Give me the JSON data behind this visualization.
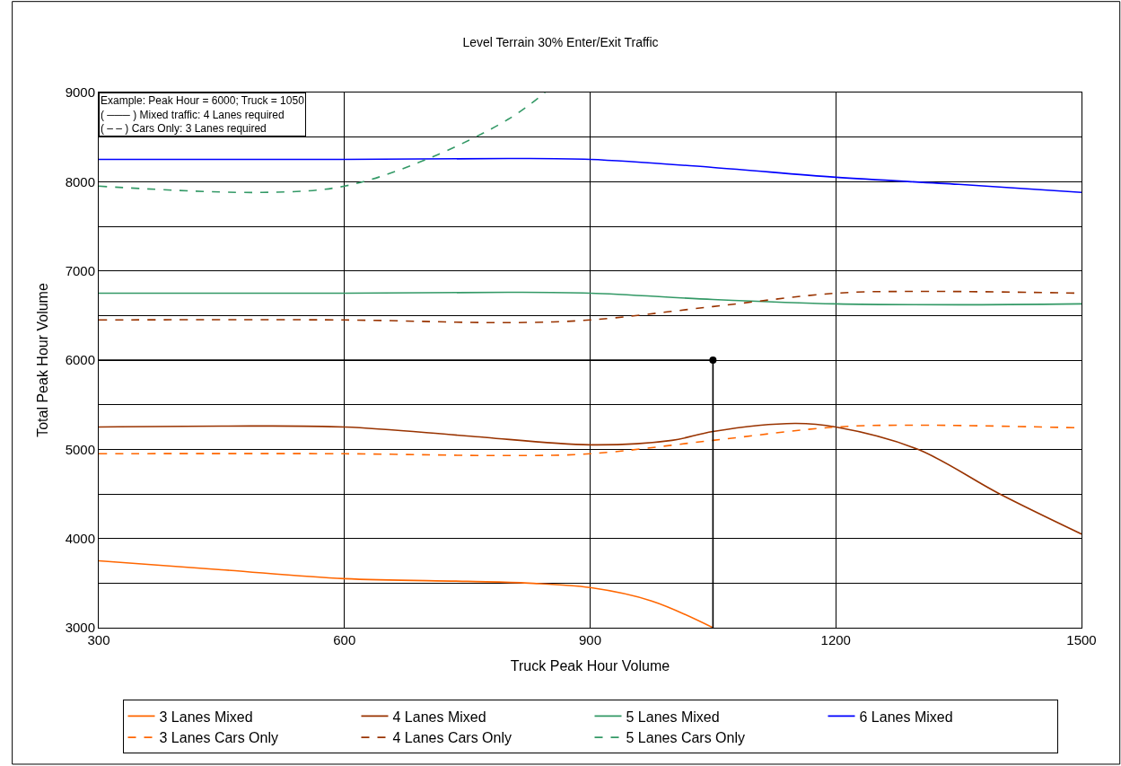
{
  "chart_data": {
    "type": "line",
    "title": "Level Terrain 30% Enter/Exit Traffic",
    "xlabel": "Truck Peak Hour Volume",
    "ylabel": "Total Peak Hour Volume",
    "xlim": [
      300,
      1500
    ],
    "xticks": [
      300,
      600,
      900,
      1200,
      1500
    ],
    "ylim": [
      3000,
      9000
    ],
    "yticks": [
      3000,
      {
        "value": 3500,
        "label": null
      },
      4000,
      {
        "value": 4500,
        "label": null
      },
      5000,
      {
        "value": 5500,
        "label": null
      },
      6000,
      {
        "value": 6500,
        "label": null
      },
      7000,
      {
        "value": 7500,
        "label": null
      },
      8000,
      {
        "value": 8500,
        "label": null
      },
      9000
    ],
    "grid": true,
    "legend": "bottom",
    "marker": "none",
    "annotations": [
      "Example: Peak Hour = 6000; Truck = 1050",
      "( ─── ) Mixed traffic: 4 Lanes required",
      "( ‒ ‒ ) Cars Only: 3 Lanes required"
    ],
    "series": [
      {
        "name": "3 Lanes Mixed",
        "color": "#ff6600",
        "line_style": "solid",
        "x": [
          300,
          450,
          600,
          750,
          825,
          900,
          975,
          1050
        ],
        "values": [
          3750,
          3650,
          3550,
          3520,
          3500,
          3450,
          3300,
          3000
        ]
      },
      {
        "name": "4 Lanes Mixed",
        "color": "#993300",
        "line_style": "solid",
        "x": [
          300,
          450,
          600,
          750,
          900,
          1000,
          1050,
          1150,
          1200,
          1300,
          1400,
          1500
        ],
        "values": [
          5250,
          5260,
          5250,
          5150,
          5050,
          5100,
          5200,
          5290,
          5250,
          5000,
          4500,
          4050
        ]
      },
      {
        "name": "5 Lanes Mixed",
        "color": "#339966",
        "line_style": "solid",
        "x": [
          300,
          600,
          800,
          900,
          1050,
          1200,
          1350,
          1500
        ],
        "values": [
          6750,
          6750,
          6760,
          6750,
          6680,
          6630,
          6620,
          6630
        ]
      },
      {
        "name": "6 Lanes Mixed",
        "color": "#0000ff",
        "line_style": "solid",
        "x": [
          300,
          600,
          800,
          900,
          1050,
          1200,
          1350,
          1500
        ],
        "values": [
          8250,
          8250,
          8260,
          8250,
          8160,
          8050,
          7970,
          7880
        ]
      },
      {
        "name": "3 Lanes Cars Only",
        "color": "#ff6600",
        "line_style": "dashed",
        "x": [
          300,
          600,
          800,
          900,
          1050,
          1200,
          1300,
          1500
        ],
        "values": [
          4950,
          4950,
          4930,
          4950,
          5100,
          5250,
          5270,
          5240
        ]
      },
      {
        "name": "4 Lanes Cars Only",
        "color": "#993300",
        "line_style": "dashed",
        "x": [
          300,
          600,
          800,
          900,
          1050,
          1200,
          1300,
          1500
        ],
        "values": [
          6450,
          6450,
          6420,
          6450,
          6600,
          6750,
          6770,
          6750
        ]
      },
      {
        "name": "5 Lanes Cars Only",
        "color": "#339966",
        "line_style": "dashed",
        "x": [
          300,
          500,
          600,
          700,
          800,
          845
        ],
        "values": [
          7950,
          7880,
          7950,
          8250,
          8700,
          9000
        ]
      },
      {
        "color": "#000000",
        "line_style": "solid",
        "x": [
          300,
          1050,
          1050
        ],
        "values": [
          6000,
          6000,
          3000
        ]
      },
      {
        "type": "scatter",
        "color": "#000000",
        "marker": "circle",
        "x": [
          1050
        ],
        "values": [
          6000
        ]
      }
    ]
  }
}
